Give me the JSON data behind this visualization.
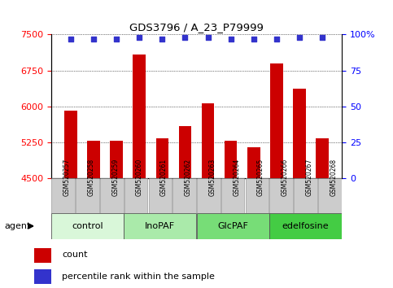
{
  "title": "GDS3796 / A_23_P79999",
  "samples": [
    "GSM520257",
    "GSM520258",
    "GSM520259",
    "GSM520260",
    "GSM520261",
    "GSM520262",
    "GSM520263",
    "GSM520264",
    "GSM520265",
    "GSM520266",
    "GSM520267",
    "GSM520268"
  ],
  "counts": [
    5920,
    5280,
    5285,
    7080,
    5340,
    5590,
    6060,
    5290,
    5160,
    6900,
    6380,
    5340
  ],
  "percentiles": [
    97,
    97,
    97,
    98,
    97,
    98,
    98,
    97,
    97,
    97,
    98,
    98
  ],
  "groups": [
    {
      "label": "control",
      "color": "#d9f7d9",
      "start": 0,
      "end": 3
    },
    {
      "label": "InoPAF",
      "color": "#aaeaaa",
      "start": 3,
      "end": 6
    },
    {
      "label": "GlcPAF",
      "color": "#77dd77",
      "start": 6,
      "end": 9
    },
    {
      "label": "edelfosine",
      "color": "#44cc44",
      "start": 9,
      "end": 12
    }
  ],
  "ylim_left": [
    4500,
    7500
  ],
  "yticks_left": [
    4500,
    5250,
    6000,
    6750,
    7500
  ],
  "ylim_right": [
    0,
    100
  ],
  "yticks_right": [
    0,
    25,
    50,
    75,
    100
  ],
  "bar_color": "#cc0000",
  "dot_color": "#3333cc",
  "bar_width": 0.55,
  "legend_items": [
    {
      "label": "count",
      "color": "#cc0000"
    },
    {
      "label": "percentile rank within the sample",
      "color": "#3333cc"
    }
  ],
  "agent_label": "agent",
  "tick_bg": "#cccccc"
}
